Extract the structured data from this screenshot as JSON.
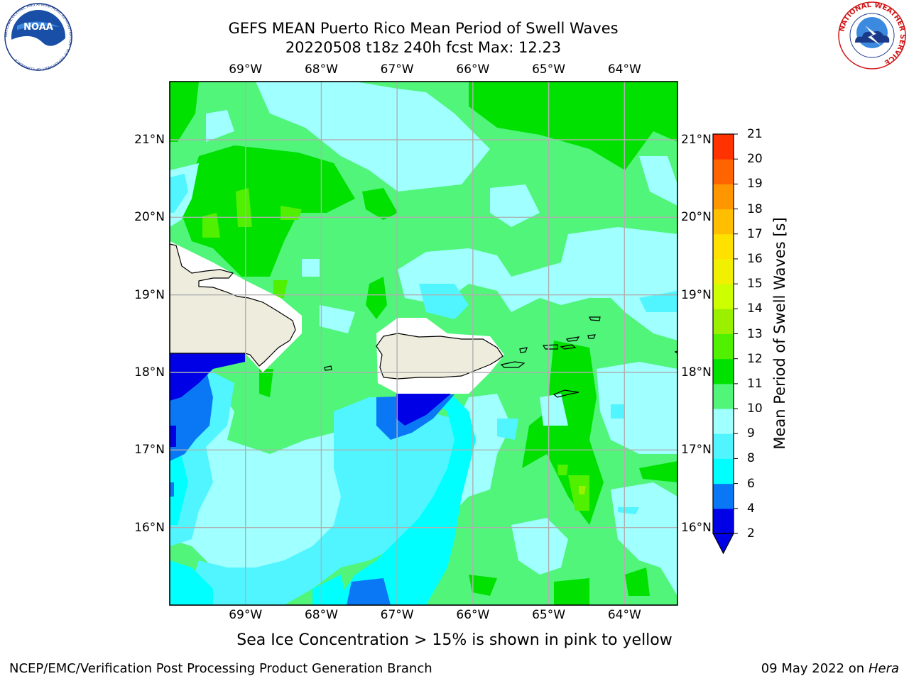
{
  "title": {
    "line1": "GEFS MEAN Puerto Rico Mean Period of Swell Waves",
    "line2": "20220508 t18z 240h fcst   Max: 12.23"
  },
  "map": {
    "lon_labels": [
      "69°W",
      "68°W",
      "67°W",
      "66°W",
      "65°W",
      "64°W"
    ],
    "lat_labels": [
      "16°N",
      "17°N",
      "18°N",
      "19°N",
      "20°N",
      "21°N"
    ],
    "lon_range": [
      -70.0,
      -63.3
    ],
    "lat_range": [
      15.0,
      21.75
    ],
    "land_color": "#eeecdc",
    "grid_color": "#b0b0b0"
  },
  "colorbar": {
    "label": "Mean Period of Swell Waves [s]",
    "ticks": [
      "2",
      "4",
      "6",
      "8",
      "9",
      "10",
      "11",
      "12",
      "13",
      "14",
      "15",
      "16",
      "17",
      "18",
      "19",
      "20",
      "21"
    ],
    "colors": [
      "#0000e6",
      "#0a78f5",
      "#00ffff",
      "#50f5ff",
      "#a0ffff",
      "#50f57a",
      "#00e100",
      "#50f000",
      "#9bf000",
      "#cdff00",
      "#f0f000",
      "#ffe100",
      "#ffbe00",
      "#ff9600",
      "#ff6400",
      "#ff3200"
    ],
    "under_color": "#0000e6"
  },
  "caption": "Sea Ice Concentration > 15% is shown in pink to yellow",
  "footer": {
    "left": "NCEP/EMC/Verification Post Processing Product Generation Branch",
    "date": "09 May 2022 on",
    "host": "Hera"
  },
  "logos": {
    "noaa": {
      "text": "NOAA",
      "ring": "NATIONAL OCEANIC AND ATMOSPHERIC ADMINISTRATION · U.S. DEPARTMENT OF COMMERCE"
    },
    "nws": {
      "ring": "NATIONAL WEATHER SERVICE"
    }
  }
}
